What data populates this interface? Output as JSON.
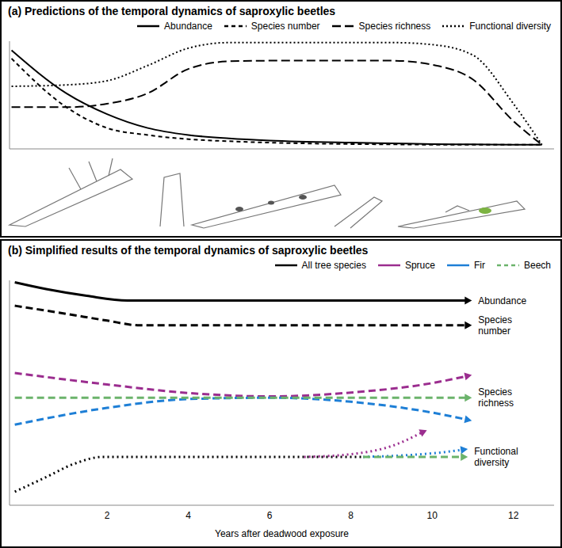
{
  "chart_data": [
    {
      "type": "line",
      "title": "(a) Predictions of the temporal dynamics of saproxylic beetles",
      "xlim": [
        -0.4,
        13
      ],
      "ylim": [
        0,
        100
      ],
      "tick_labels": false,
      "legend": "top-right",
      "series": [
        {
          "name": "Abundance",
          "color": "#000000",
          "line_style": "solid",
          "x": [
            -0.35,
            1,
            2,
            3,
            4,
            5,
            6,
            8,
            9,
            10,
            11,
            12,
            12.7
          ],
          "values": [
            91.6,
            51.6,
            32.3,
            19.4,
            12.9,
            9.7,
            7.7,
            5.8,
            5.2,
            4.5,
            4.2,
            3.9,
            3.9
          ]
        },
        {
          "name": "Species number",
          "color": "#000000",
          "line_style": "dashed",
          "x": [
            -0.35,
            1,
            2,
            3,
            4,
            5,
            6,
            8,
            9,
            10,
            11,
            12,
            12.7
          ],
          "values": [
            83.9,
            38.7,
            19.4,
            12.9,
            9.0,
            7.1,
            5.8,
            4.5,
            4.2,
            3.9,
            3.9,
            3.9,
            3.9
          ]
        },
        {
          "name": "Species richness",
          "color": "#000000",
          "line_style": "longdash",
          "x": [
            -0.35,
            1,
            2,
            3,
            4,
            5,
            6,
            8,
            9,
            10,
            11,
            12,
            12.7
          ],
          "values": [
            38.7,
            38.7,
            41.9,
            51.6,
            74.2,
            81.3,
            81.9,
            81.9,
            81.9,
            78.1,
            64.5,
            25.8,
            3.9
          ]
        },
        {
          "name": "Functional diversity",
          "color": "#000000",
          "line_style": "dotted",
          "x": [
            -0.35,
            1,
            2,
            3,
            4,
            5,
            6,
            8,
            9,
            10,
            11,
            12,
            12.7
          ],
          "values": [
            58.1,
            59.4,
            63.2,
            77.4,
            93.5,
            98.7,
            98.7,
            98.7,
            98.7,
            96.8,
            87.1,
            41.9,
            3.9
          ]
        }
      ]
    },
    {
      "type": "line",
      "title": "(b) Simplified results of the temporal dynamics of saproxylic beetles",
      "x_label": "Years after deadwood exposure",
      "xlim": [
        -0.4,
        13
      ],
      "ylim": [
        0,
        100
      ],
      "xticks": [
        2,
        4,
        6,
        8,
        10,
        12
      ],
      "tick_labels": "x",
      "legend": "top-right",
      "series": [
        {
          "name": "All tree species",
          "color": "#000000",
          "line_style": "solid",
          "marker": "arrow",
          "label": "Abundance",
          "x": [
            -0.27,
            0.5,
            1.5,
            2.5,
            4,
            8,
            10.9
          ],
          "values": [
            99.1,
            96.1,
            93.1,
            91.0,
            91.0,
            91.0,
            91.0
          ]
        },
        {
          "name": "All tree species",
          "color": "#000000",
          "line_style": "dashed",
          "marker": "arrow",
          "label": "Species number",
          "x": [
            -0.27,
            1,
            2,
            2.8,
            4,
            8,
            10.9
          ],
          "values": [
            88.7,
            85.1,
            82.1,
            80.0,
            80.0,
            80.0,
            80.0
          ]
        },
        {
          "name": "Spruce",
          "color": "#9b2d8f",
          "line_style": "dashed",
          "marker": "arrow",
          "x": [
            -0.27,
            2,
            4,
            6,
            8,
            10,
            10.9
          ],
          "values": [
            58.8,
            53.7,
            49.9,
            48.4,
            50.1,
            54.3,
            57.6
          ]
        },
        {
          "name": "Fir",
          "color": "#1e7fd6",
          "line_style": "dashed",
          "marker": "arrow",
          "x": [
            -0.27,
            2,
            4,
            6,
            8,
            10,
            10.9
          ],
          "values": [
            35.8,
            43.3,
            47.2,
            47.8,
            46.0,
            41.2,
            37.9
          ]
        },
        {
          "name": "Beech",
          "color": "#6bb36b",
          "line_style": "dashed",
          "marker": "arrow",
          "label": "Species richness",
          "x": [
            -0.27,
            10.9
          ],
          "values": [
            47.8,
            47.8
          ]
        },
        {
          "name": "All tree species",
          "color": "#000000",
          "line_style": "dotted",
          "x": [
            -0.27,
            0.5,
            1.2,
            1.9,
            4,
            8.3
          ],
          "values": [
            6.0,
            12.5,
            18.5,
            21.5,
            21.5,
            21.5
          ]
        },
        {
          "name": "Spruce",
          "color": "#9b2d8f",
          "line_style": "dotted",
          "marker": "arrow",
          "x": [
            6.85,
            8,
            9,
            9.8
          ],
          "values": [
            21.5,
            22.7,
            26.3,
            32.8
          ]
        },
        {
          "name": "Fir",
          "color": "#1e7fd6",
          "line_style": "dotted",
          "marker": "arrow",
          "x": [
            8.3,
            9.5,
            10.3,
            10.8
          ],
          "values": [
            21.5,
            22.4,
            23.6,
            24.8
          ]
        },
        {
          "name": "Beech",
          "color": "#6bb36b",
          "line_style": "dashed",
          "marker": "arrow",
          "label": "Functional diversity",
          "x": [
            8.3,
            10.8
          ],
          "values": [
            21.5,
            21.5
          ]
        }
      ]
    }
  ]
}
